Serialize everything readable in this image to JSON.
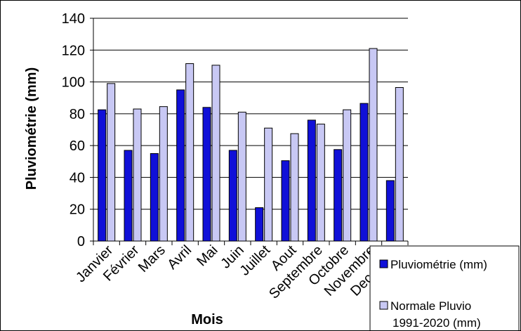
{
  "chart_data": {
    "type": "bar",
    "xlabel": "Mois",
    "ylabel": "Pluviométrie (mm)",
    "ylim": [
      0,
      140
    ],
    "yticks": [
      "0",
      "20",
      "40",
      "60",
      "80",
      "100",
      "120",
      "140"
    ],
    "categories": [
      "Janvier",
      "Février",
      "Mars",
      "Avril",
      "Mai",
      "Juin",
      "Juillet",
      "Aout",
      "Septembre",
      "Octobre",
      "Novembre",
      "Decembre"
    ],
    "series": [
      {
        "name": "Pluviométrie (mm)",
        "color": "#1010D8",
        "values": [
          82.5,
          57,
          55,
          95,
          84,
          57,
          21,
          50.5,
          76,
          57.5,
          86.5,
          38
        ]
      },
      {
        "name": "Normale Pluvio 1991-2020 (mm)",
        "name_lines": [
          "Normale Pluvio",
          "1991-2020 (mm)"
        ],
        "color": "#C8C8F4",
        "values": [
          99,
          83,
          84.5,
          111.5,
          110.5,
          81,
          71,
          67.5,
          73.5,
          82.5,
          121,
          96.5
        ]
      }
    ],
    "grid": true,
    "legend": "bottom-right"
  }
}
